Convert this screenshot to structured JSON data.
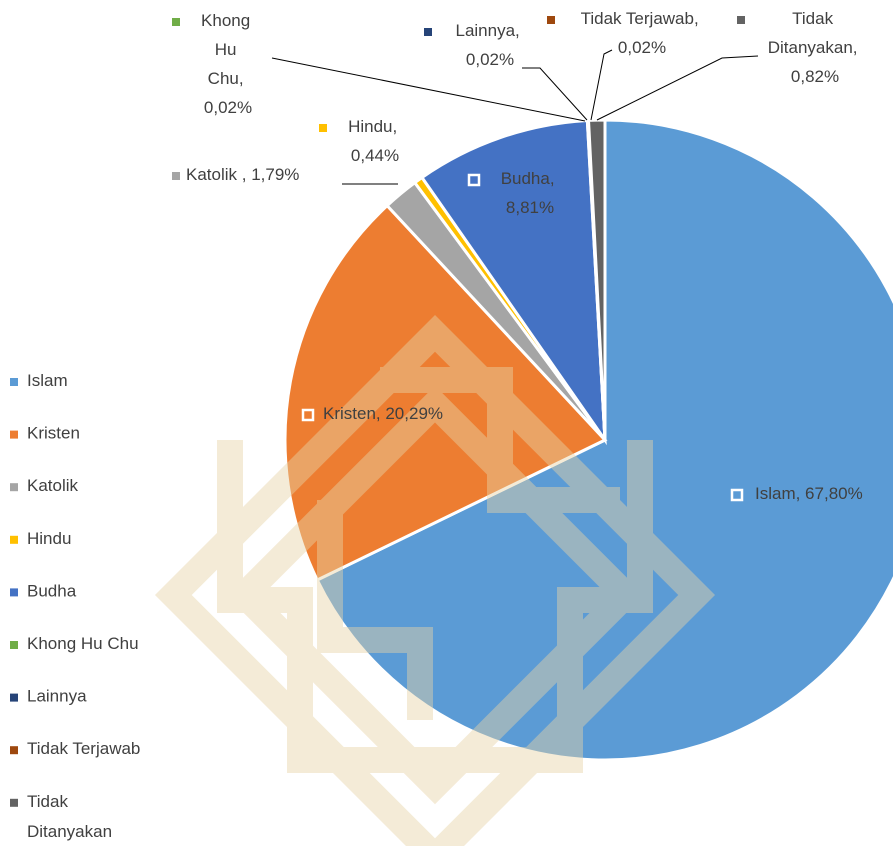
{
  "chart_data": {
    "type": "pie",
    "categories": [
      "Islam",
      "Kristen",
      "Katolik",
      "Hindu",
      "Budha",
      "Khong Hu Chu",
      "Lainnya",
      "Tidak Terjawab",
      "Tidak Ditanyakan"
    ],
    "values": [
      67.8,
      20.29,
      1.79,
      0.44,
      8.81,
      0.02,
      0.02,
      0.02,
      0.82
    ],
    "value_labels": [
      "Islam, 67,80%",
      "Kristen, 20,29%",
      "Katolik , 1,79%",
      "Hindu, 0,44%",
      "Budha, 8,81%",
      "Khong Hu Chu, 0,02%",
      "Lainnya, 0,02%",
      "Tidak Terjawab, 0,02%",
      "Tidak Ditanyakan, 0,82%"
    ],
    "colors": [
      "#5b9bd5",
      "#ed7d31",
      "#a5a5a5",
      "#ffc000",
      "#4472c4",
      "#70ad47",
      "#264478",
      "#9e480e",
      "#636363"
    ],
    "legend": "left"
  }
}
